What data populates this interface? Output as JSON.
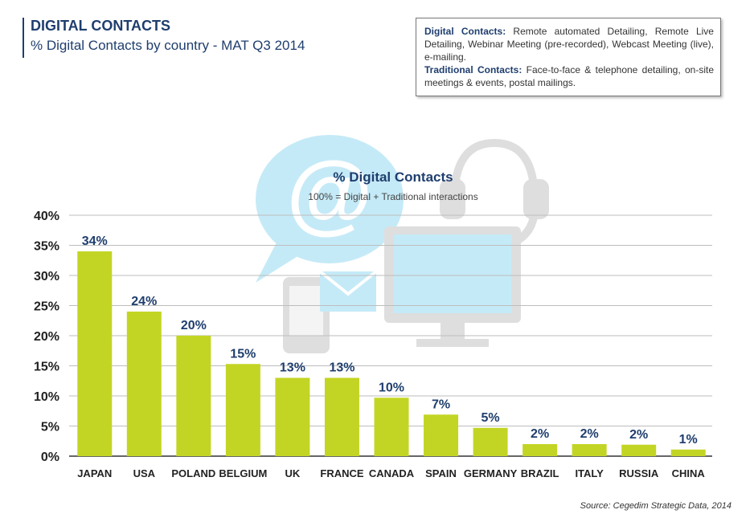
{
  "header": {
    "title": "DIGITAL CONTACTS",
    "subtitle": "% Digital Contacts by country - MAT Q3 2014"
  },
  "definitions": {
    "digital_term": "Digital Contacts:",
    "digital_text": "Remote automated Detailing, Remote Live Detailing, Webinar Meeting (pre-recorded), Webcast Meeting (live), e-mailing.",
    "traditional_term": "Traditional Contacts:",
    "traditional_text": "Face-to-face & telephone detailing, on-site meetings & events, postal mailings."
  },
  "source": "Source: Cegedim Strategic Data, 2014",
  "colors": {
    "bar": "#c3d524",
    "title": "#1f3e6e",
    "watermark": "#33b6e3"
  },
  "chart_data": {
    "type": "bar",
    "title": "% Digital Contacts",
    "subtitle": "100% = Digital + Traditional interactions",
    "categories": [
      "JAPAN",
      "USA",
      "POLAND",
      "BELGIUM",
      "UK",
      "FRANCE",
      "CANADA",
      "SPAIN",
      "GERMANY",
      "BRAZIL",
      "ITALY",
      "RUSSIA",
      "CHINA"
    ],
    "values": [
      34,
      24,
      20,
      15.3,
      13,
      13,
      9.7,
      6.9,
      4.7,
      2,
      2,
      1.9,
      1.1
    ],
    "data_labels": [
      "34%",
      "24%",
      "20%",
      "15%",
      "13%",
      "13%",
      "10%",
      "7%",
      "5%",
      "2%",
      "2%",
      "2%",
      "1%"
    ],
    "yticks": [
      "0%",
      "5%",
      "10%",
      "15%",
      "20%",
      "25%",
      "30%",
      "35%",
      "40%"
    ],
    "ylim": [
      0,
      40
    ],
    "grid": true,
    "xlabel": "",
    "ylabel": ""
  }
}
